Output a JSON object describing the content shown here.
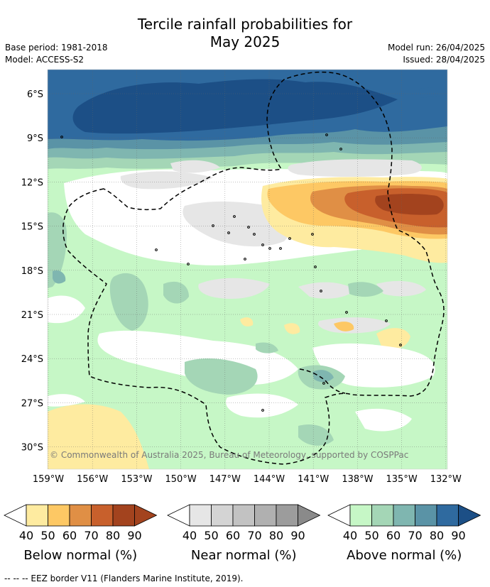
{
  "title_line1": "Tercile rainfall probabilities for",
  "title_line2": "May 2025",
  "base_period": "Base period: 1981-2018",
  "model": "Model: ACCESS-S2",
  "model_run": "Model run: 26/04/2025",
  "issued": "Issued: 28/04/2025",
  "credit": "© Commonwealth of Australia 2025, Bureau of Meteorology, supported by COSPPac",
  "footer": "--  --  -- EEZ border V11 (Flanders Marine Institute, 2019).",
  "map": {
    "lon_ticks": [
      "159°W",
      "156°W",
      "153°W",
      "150°W",
      "147°W",
      "144°W",
      "141°W",
      "138°W",
      "135°W",
      "132°W"
    ],
    "lat_ticks": [
      "6°S",
      "9°S",
      "12°S",
      "15°S",
      "18°S",
      "21°S",
      "24°S",
      "27°S",
      "30°S"
    ]
  },
  "colorbars": [
    {
      "label": "Below normal (%)",
      "ticks": [
        "40",
        "50",
        "60",
        "70",
        "80",
        "90"
      ],
      "colors": [
        "#ffffff",
        "#feeba0",
        "#fdc864",
        "#e08f45",
        "#c8602c",
        "#a3431e",
        "#a3431e"
      ]
    },
    {
      "label": "Near normal (%)",
      "ticks": [
        "40",
        "50",
        "60",
        "70",
        "80",
        "90"
      ],
      "colors": [
        "#ffffff",
        "#e6e6e6",
        "#d4d4d4",
        "#c2c2c2",
        "#b0b0b0",
        "#9c9c9c",
        "#8a8a8a"
      ]
    },
    {
      "label": "Above normal (%)",
      "ticks": [
        "40",
        "50",
        "60",
        "70",
        "80",
        "90"
      ],
      "colors": [
        "#ffffff",
        "#c6f7c6",
        "#a4d6b6",
        "#7fb6b0",
        "#5a93a6",
        "#2f6a9f",
        "#1c4f86"
      ]
    }
  ]
}
